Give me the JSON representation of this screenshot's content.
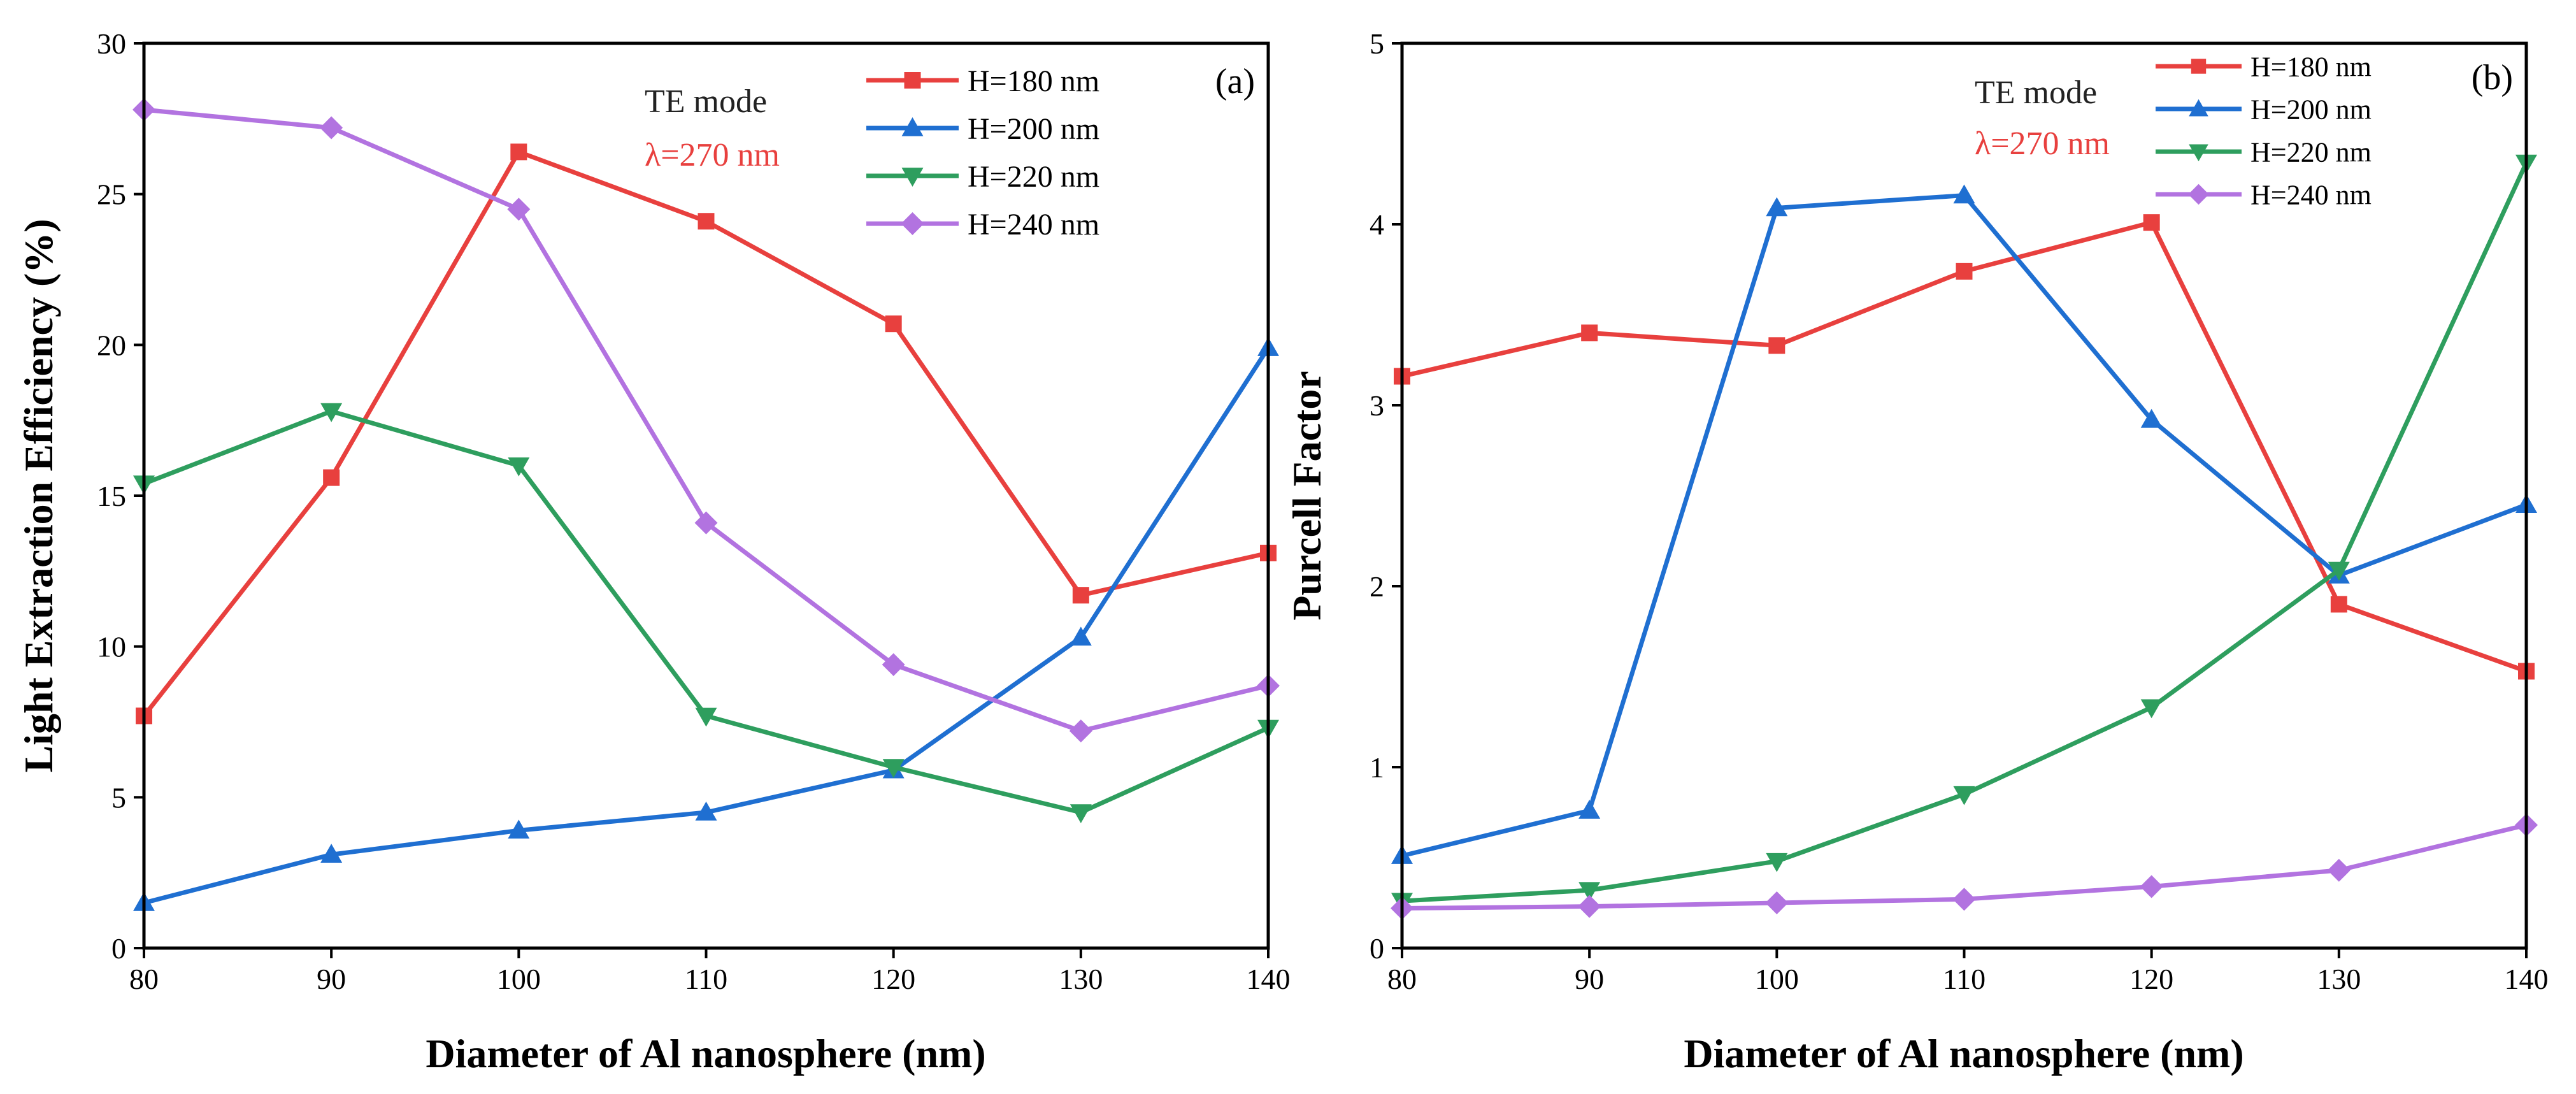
{
  "chart_data": [
    {
      "type": "line",
      "panel_label": "(a)",
      "xlabel": "Diameter of Al nanosphere (nm)",
      "ylabel": "Light Extraction Efficiency (%)",
      "xlim": [
        80,
        140
      ],
      "ylim": [
        0,
        30
      ],
      "xticks": [
        80,
        90,
        100,
        110,
        120,
        130,
        140
      ],
      "yticks": [
        0,
        5,
        10,
        15,
        20,
        25,
        30
      ],
      "grid": false,
      "legend_position": "top-right",
      "annotations": [
        {
          "text": "TE mode",
          "color": "#222222"
        },
        {
          "text": "λ=270 nm",
          "color": "#e8403e"
        }
      ],
      "x": [
        80,
        90,
        100,
        110,
        120,
        130,
        140
      ],
      "series": [
        {
          "name": "H=180 nm",
          "color": "#e8403e",
          "marker": "square",
          "values": [
            7.7,
            15.6,
            26.4,
            24.1,
            20.7,
            11.7,
            13.1
          ]
        },
        {
          "name": "H=200 nm",
          "color": "#1f6fd1",
          "marker": "triangle-up",
          "values": [
            1.5,
            3.1,
            3.9,
            4.5,
            5.9,
            10.3,
            19.9
          ]
        },
        {
          "name": "H=220 nm",
          "color": "#2e9e5e",
          "marker": "triangle-down",
          "values": [
            15.4,
            17.8,
            16.0,
            7.7,
            6.0,
            4.5,
            7.3
          ]
        },
        {
          "name": "H=240 nm",
          "color": "#b273e0",
          "marker": "diamond",
          "values": [
            27.8,
            27.2,
            24.5,
            14.1,
            9.4,
            7.2,
            8.7
          ]
        }
      ]
    },
    {
      "type": "line",
      "panel_label": "(b)",
      "xlabel": "Diameter of Al nanosphere (nm)",
      "ylabel": "Purcell Factor",
      "xlim": [
        80,
        140
      ],
      "ylim": [
        0,
        5
      ],
      "xticks": [
        80,
        90,
        100,
        110,
        120,
        130,
        140
      ],
      "yticks": [
        0,
        1,
        2,
        3,
        4,
        5
      ],
      "grid": false,
      "legend_position": "top-right",
      "annotations": [
        {
          "text": "TE mode",
          "color": "#222222"
        },
        {
          "text": "λ=270 nm",
          "color": "#e8403e"
        }
      ],
      "x": [
        80,
        90,
        100,
        110,
        120,
        130,
        140
      ],
      "series": [
        {
          "name": "H=180 nm",
          "color": "#e8403e",
          "marker": "square",
          "values": [
            3.16,
            3.4,
            3.33,
            3.74,
            4.01,
            1.9,
            1.53
          ]
        },
        {
          "name": "H=200 nm",
          "color": "#1f6fd1",
          "marker": "triangle-up",
          "values": [
            0.51,
            0.76,
            4.09,
            4.16,
            2.92,
            2.06,
            2.45
          ]
        },
        {
          "name": "H=220 nm",
          "color": "#2e9e5e",
          "marker": "triangle-down",
          "values": [
            0.26,
            0.32,
            0.48,
            0.85,
            1.33,
            2.09,
            4.34
          ]
        },
        {
          "name": "H=240 nm",
          "color": "#b273e0",
          "marker": "diamond",
          "values": [
            0.22,
            0.23,
            0.25,
            0.27,
            0.34,
            0.43,
            0.68
          ]
        }
      ]
    }
  ]
}
